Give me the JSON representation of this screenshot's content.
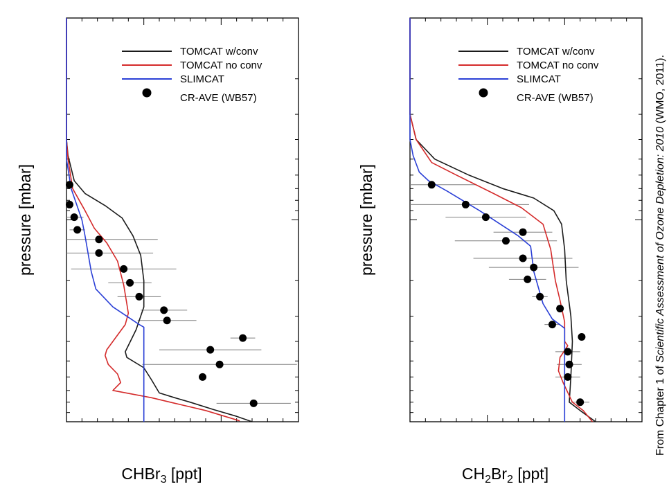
{
  "credit": {
    "prefix": "From Chapter 1 of ",
    "italic": "Scientific Assessment of Ozone Depletion: 2010",
    "suffix": " (WMO, 2011)."
  },
  "colors": {
    "tomcat_conv": "#1a1a1a",
    "tomcat_noconv": "#d42a2a",
    "slimcat": "#2a3fd6",
    "observations": "#000000",
    "error_bars": "#7f7f7f"
  },
  "chart_data": [
    {
      "type": "line",
      "xlabel": {
        "base": "CHBr",
        "sub": "3",
        "rest": " [ppt]"
      },
      "ylabel": "pressure [mbar]",
      "xlim": [
        0,
        1.5
      ],
      "ylim": [
        1000,
        10
      ],
      "yscale": "log",
      "grid": false,
      "legend_position": "top-right",
      "x_ticks": [
        "0.0",
        "0.5",
        "1.0",
        "1.5"
      ],
      "y_ticks": [
        "10",
        "100",
        "1000"
      ],
      "series": [
        {
          "name": "TOMCAT w/conv",
          "color": "tomcat_conv",
          "points": [
            [
              0,
              10
            ],
            [
              0,
              40
            ],
            [
              0.01,
              48
            ],
            [
              0.05,
              64
            ],
            [
              0.12,
              74
            ],
            [
              0.25,
              85
            ],
            [
              0.36,
              98
            ],
            [
              0.43,
              120
            ],
            [
              0.48,
              150
            ],
            [
              0.5,
              200
            ],
            [
              0.5,
              270
            ],
            [
              0.45,
              350
            ],
            [
              0.38,
              450
            ],
            [
              0.39,
              480
            ],
            [
              0.5,
              540
            ],
            [
              0.55,
              620
            ],
            [
              0.6,
              720
            ],
            [
              0.7,
              760
            ],
            [
              0.8,
              800
            ],
            [
              0.95,
              870
            ],
            [
              1.1,
              940
            ],
            [
              1.2,
              1000
            ]
          ]
        },
        {
          "name": "TOMCAT no conv",
          "color": "tomcat_noconv",
          "points": [
            [
              0,
              10
            ],
            [
              0,
              40
            ],
            [
              0.01,
              50
            ],
            [
              0.04,
              70
            ],
            [
              0.12,
              90
            ],
            [
              0.18,
              110
            ],
            [
              0.26,
              130
            ],
            [
              0.33,
              160
            ],
            [
              0.37,
              210
            ],
            [
              0.39,
              260
            ],
            [
              0.4,
              290
            ],
            [
              0.38,
              330
            ],
            [
              0.3,
              400
            ],
            [
              0.26,
              440
            ],
            [
              0.25,
              470
            ],
            [
              0.27,
              520
            ],
            [
              0.33,
              580
            ],
            [
              0.35,
              640
            ],
            [
              0.3,
              700
            ],
            [
              0.55,
              760
            ],
            [
              0.7,
              810
            ],
            [
              0.9,
              880
            ],
            [
              1.12,
              990
            ]
          ]
        },
        {
          "name": "SLIMCAT",
          "color": "slimcat",
          "points": [
            [
              0,
              10
            ],
            [
              0,
              50
            ],
            [
              0.03,
              70
            ],
            [
              0.1,
              100
            ],
            [
              0.12,
              120
            ],
            [
              0.16,
              180
            ],
            [
              0.19,
              220
            ],
            [
              0.3,
              270
            ],
            [
              0.47,
              330
            ],
            [
              0.5,
              340
            ],
            [
              0.5,
              1000
            ]
          ]
        }
      ],
      "observations": {
        "name": "CR-AVE (WB57)",
        "points": [
          {
            "x": 0.02,
            "y": 67,
            "err": 0
          },
          {
            "x": 0.02,
            "y": 84,
            "err": 0
          },
          {
            "x": 0.05,
            "y": 97,
            "err": 0.06
          },
          {
            "x": 0.07,
            "y": 112,
            "err": 0.05
          },
          {
            "x": 0.21,
            "y": 125,
            "err": 0.38
          },
          {
            "x": 0.21,
            "y": 146,
            "err": 0.35
          },
          {
            "x": 0.37,
            "y": 175,
            "err": 0.34
          },
          {
            "x": 0.41,
            "y": 205,
            "err": 0.14
          },
          {
            "x": 0.47,
            "y": 240,
            "err": 0.14
          },
          {
            "x": 0.63,
            "y": 280,
            "err": 0.15
          },
          {
            "x": 0.65,
            "y": 315,
            "err": 0.19
          },
          {
            "x": 1.14,
            "y": 385,
            "err": 0.08
          },
          {
            "x": 0.93,
            "y": 440,
            "err": 0.33
          },
          {
            "x": 0.99,
            "y": 520,
            "err": 0.5
          },
          {
            "x": 0.88,
            "y": 600,
            "err": 0
          },
          {
            "x": 1.21,
            "y": 810,
            "err": 0.24
          }
        ]
      }
    },
    {
      "type": "line",
      "xlabel": {
        "base": "CH",
        "sub": "2",
        "mid": "Br",
        "sub2": "2",
        "rest": " [ppt]"
      },
      "ylabel": "pressure [mbar]",
      "xlim": [
        0,
        1.5
      ],
      "ylim": [
        1000,
        10
      ],
      "yscale": "log",
      "grid": false,
      "legend_position": "top-right",
      "x_ticks": [
        "0.0",
        "0.5",
        "1.0",
        "1.5"
      ],
      "y_ticks": [
        "10",
        "100",
        "1000"
      ],
      "series": [
        {
          "name": "TOMCAT w/conv",
          "color": "tomcat_conv",
          "points": [
            [
              0,
              10
            ],
            [
              0,
              30
            ],
            [
              0.04,
              40
            ],
            [
              0.16,
              50
            ],
            [
              0.38,
              60
            ],
            [
              0.6,
              70
            ],
            [
              0.8,
              78
            ],
            [
              0.93,
              90
            ],
            [
              0.98,
              105
            ],
            [
              1.0,
              140
            ],
            [
              1.01,
              200
            ],
            [
              1.04,
              300
            ],
            [
              1.05,
              400
            ],
            [
              1.04,
              600
            ],
            [
              1.03,
              800
            ],
            [
              1.1,
              880
            ],
            [
              1.2,
              1000
            ]
          ]
        },
        {
          "name": "TOMCAT no conv",
          "color": "tomcat_noconv",
          "points": [
            [
              0,
              10
            ],
            [
              0,
              30
            ],
            [
              0.04,
              40
            ],
            [
              0.14,
              52
            ],
            [
              0.3,
              60
            ],
            [
              0.54,
              74
            ],
            [
              0.72,
              87
            ],
            [
              0.86,
              105
            ],
            [
              0.91,
              140
            ],
            [
              0.94,
              200
            ],
            [
              0.97,
              250
            ],
            [
              1.0,
              320
            ],
            [
              1.0,
              400
            ],
            [
              1.02,
              420
            ],
            [
              0.97,
              480
            ],
            [
              0.96,
              560
            ],
            [
              0.99,
              640
            ],
            [
              1.05,
              800
            ],
            [
              1.12,
              880
            ],
            [
              1.18,
              1000
            ]
          ]
        },
        {
          "name": "SLIMCAT",
          "color": "slimcat",
          "points": [
            [
              0,
              10
            ],
            [
              0,
              40
            ],
            [
              0.02,
              48
            ],
            [
              0.06,
              58
            ],
            [
              0.12,
              64
            ],
            [
              0.24,
              72
            ],
            [
              0.45,
              90
            ],
            [
              0.7,
              120
            ],
            [
              0.78,
              135
            ],
            [
              0.8,
              180
            ],
            [
              0.86,
              260
            ],
            [
              0.92,
              310
            ],
            [
              0.99,
              340
            ],
            [
              1.0,
              345
            ],
            [
              1.0,
              1000
            ]
          ]
        }
      ],
      "observations": {
        "name": "CR-AVE (WB57)",
        "points": [
          {
            "x": 0.14,
            "y": 67,
            "err": 0.29
          },
          {
            "x": 0.36,
            "y": 84,
            "err": 0.41
          },
          {
            "x": 0.49,
            "y": 97,
            "err": 0.26
          },
          {
            "x": 0.73,
            "y": 115,
            "err": 0.19
          },
          {
            "x": 0.62,
            "y": 127,
            "err": 0.33
          },
          {
            "x": 0.73,
            "y": 155,
            "err": 0.32
          },
          {
            "x": 0.8,
            "y": 172,
            "err": 0.29
          },
          {
            "x": 0.76,
            "y": 197,
            "err": 0.12
          },
          {
            "x": 0.84,
            "y": 240,
            "err": 0.05
          },
          {
            "x": 0.97,
            "y": 275,
            "err": 0
          },
          {
            "x": 0.92,
            "y": 330,
            "err": 0.05
          },
          {
            "x": 1.11,
            "y": 380,
            "err": 0
          },
          {
            "x": 1.02,
            "y": 450,
            "err": 0.08
          },
          {
            "x": 1.03,
            "y": 520,
            "err": 0.08
          },
          {
            "x": 1.02,
            "y": 600,
            "err": 0.08
          },
          {
            "x": 1.1,
            "y": 800,
            "err": 0.06
          }
        ]
      }
    }
  ]
}
